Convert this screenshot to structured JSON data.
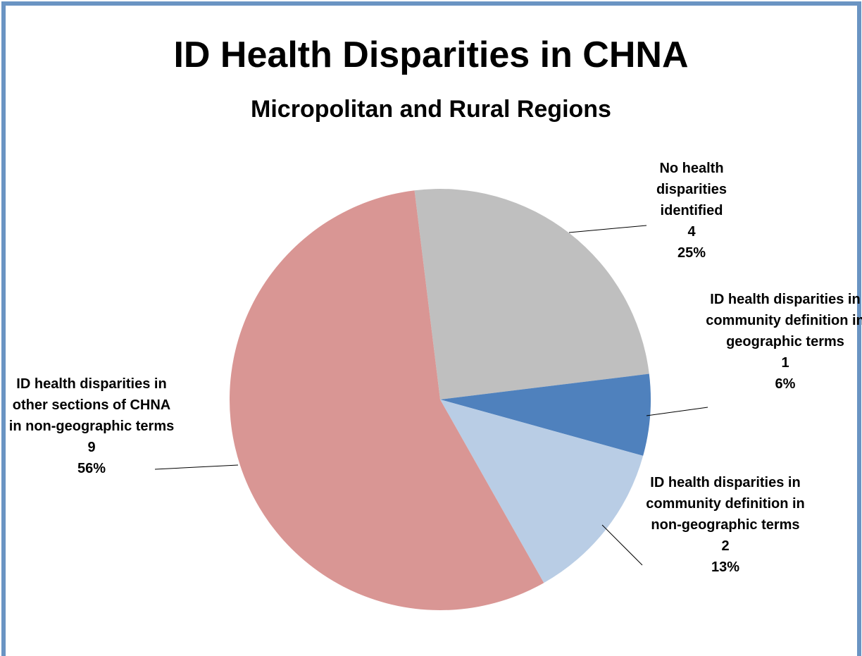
{
  "chart_data": {
    "type": "pie",
    "title": "ID Health Disparities in CHNA",
    "subtitle": "Micropolitan and Rural Regions",
    "categories": [
      "No health disparities identified",
      "ID health disparities in community definition in geographic terms",
      "ID health disparities in community definition in non-geographic terms",
      "ID health disparities in other sections of CHNA in non-geographic terms"
    ],
    "values": [
      4,
      1,
      2,
      9
    ],
    "percent_labels": [
      "25%",
      "6%",
      "13%",
      "56%"
    ],
    "colors": [
      "#bfbfbf",
      "#4f81bd",
      "#b9cde5",
      "#d99694"
    ]
  }
}
